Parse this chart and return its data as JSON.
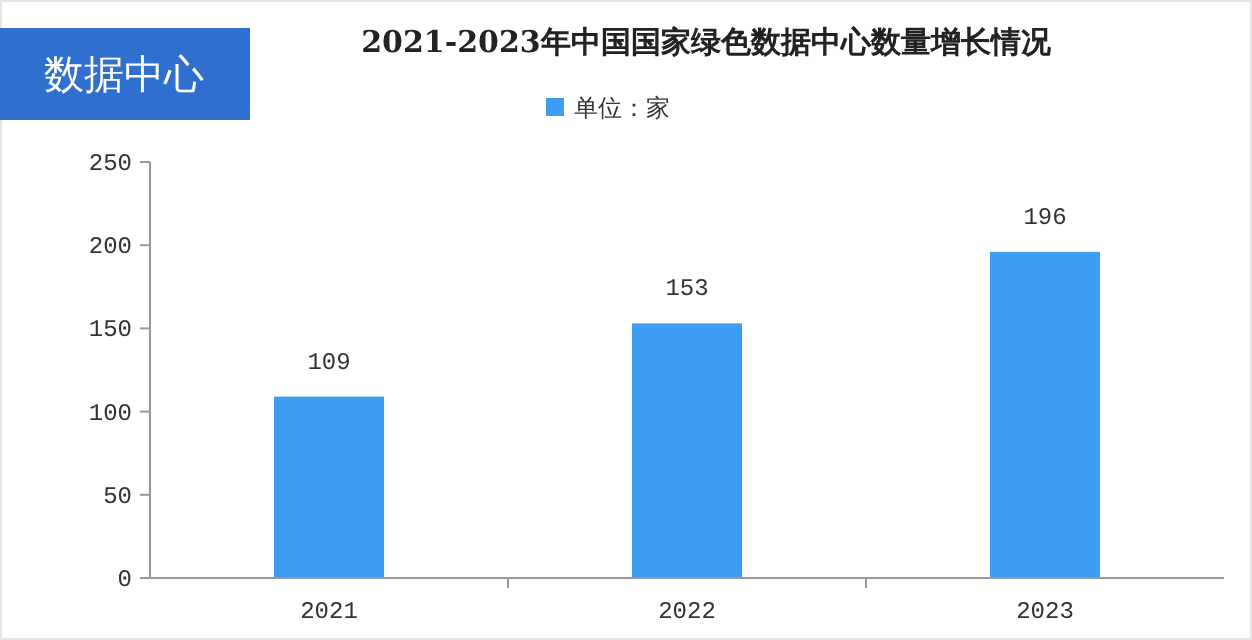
{
  "chart_data": {
    "type": "bar",
    "title": "2021-2023年中国国家绿色数据中心数量增长情况",
    "annotations": [
      "数据中心"
    ],
    "categories": [
      "2021",
      "2022",
      "2023"
    ],
    "series": [
      {
        "name": "单位：家",
        "color": "#3d9df2",
        "values": [
          109,
          153,
          196
        ]
      }
    ],
    "ylim": [
      0,
      250
    ],
    "yticks": [
      0,
      50,
      100,
      150,
      200,
      250
    ],
    "data_labels": true,
    "legend": "top",
    "grid": false
  }
}
